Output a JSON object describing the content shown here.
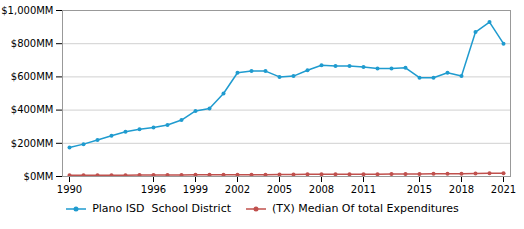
{
  "chart_data": {
    "type": "line",
    "x": [
      1990,
      1991,
      1992,
      1993,
      1994,
      1995,
      1996,
      1997,
      1998,
      1999,
      2000,
      2001,
      2002,
      2003,
      2004,
      2005,
      2006,
      2007,
      2008,
      2009,
      2010,
      2011,
      2012,
      2013,
      2014,
      2015,
      2016,
      2017,
      2018,
      2019,
      2020,
      2021
    ],
    "series": [
      {
        "name": "Plano ISD  School District",
        "color": "#1f9bcf",
        "marker": "circle",
        "values": [
          175,
          195,
          220,
          245,
          270,
          285,
          295,
          310,
          340,
          395,
          410,
          500,
          625,
          635,
          635,
          600,
          605,
          640,
          670,
          665,
          665,
          660,
          650,
          650,
          655,
          595,
          595,
          625,
          605,
          870,
          930,
          800
        ]
      },
      {
        "name": "(TX) Median Of total Expenditures",
        "color": "#c0504d",
        "marker": "circle",
        "values": [
          8,
          8,
          8,
          8,
          8,
          9,
          9,
          9,
          9,
          10,
          10,
          10,
          11,
          11,
          11,
          12,
          12,
          13,
          14,
          14,
          14,
          14,
          14,
          15,
          15,
          15,
          16,
          17,
          17,
          18,
          19,
          20
        ]
      }
    ],
    "xlim": [
      1989.5,
      2021.5
    ],
    "xticks": [
      1990,
      1996,
      1999,
      2002,
      2005,
      2008,
      2011,
      2015,
      2018,
      2021
    ],
    "ylim": [
      0,
      1000
    ],
    "yticks": [
      {
        "value": 0,
        "label": "$0MM"
      },
      {
        "value": 200,
        "label": "$200MM"
      },
      {
        "value": 400,
        "label": "$400MM"
      },
      {
        "value": 600,
        "label": "$600MM"
      },
      {
        "value": 800,
        "label": "$800MM"
      },
      {
        "value": 1000,
        "label": "$1,000MM"
      }
    ],
    "grid": true,
    "legend": "bottom"
  }
}
